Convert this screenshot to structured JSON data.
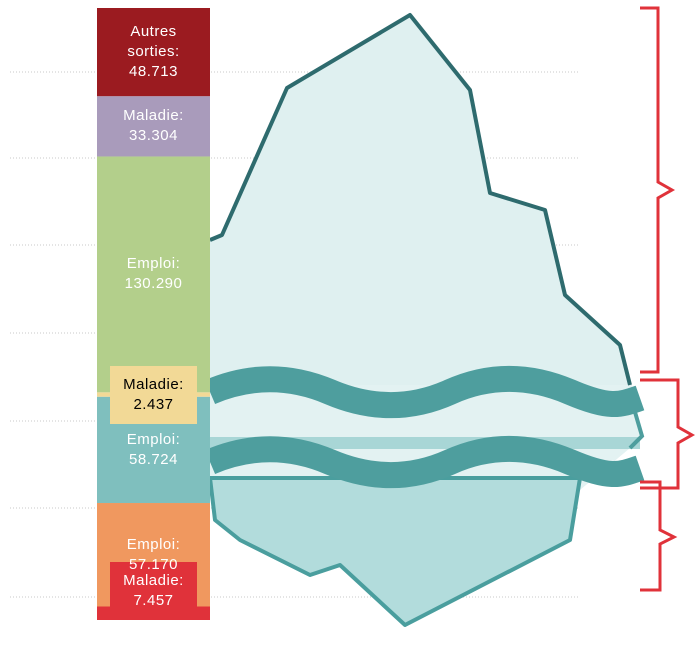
{
  "chart_data": {
    "type": "bar",
    "stacked": true,
    "categories": [
      null
    ],
    "series": [
      {
        "name": "Maladie:",
        "color": "#e0323a",
        "values": [
          7457
        ],
        "value_labels": [
          "7.457"
        ]
      },
      {
        "name": "Emploi:",
        "color": "#f0985f",
        "values": [
          57170
        ],
        "value_labels": [
          "57.170"
        ]
      },
      {
        "name": "Emploi:",
        "color": "#7fbfbe",
        "values": [
          58724
        ],
        "value_labels": [
          "58.724"
        ]
      },
      {
        "name": "Maladie:",
        "color": "#f2d996",
        "values": [
          2437
        ],
        "value_labels": [
          "2.437"
        ]
      },
      {
        "name": "Emploi:",
        "color": "#b3cf8b",
        "values": [
          130290
        ],
        "value_labels": [
          "130.290"
        ]
      },
      {
        "name": "Maladie:",
        "color": "#a99bbb",
        "values": [
          33304
        ],
        "value_labels": [
          "33.304"
        ]
      },
      {
        "name": "Autres sorties:",
        "color": "#9b1b20",
        "values": [
          48713
        ],
        "value_labels": [
          "48.713"
        ]
      }
    ]
  }
}
